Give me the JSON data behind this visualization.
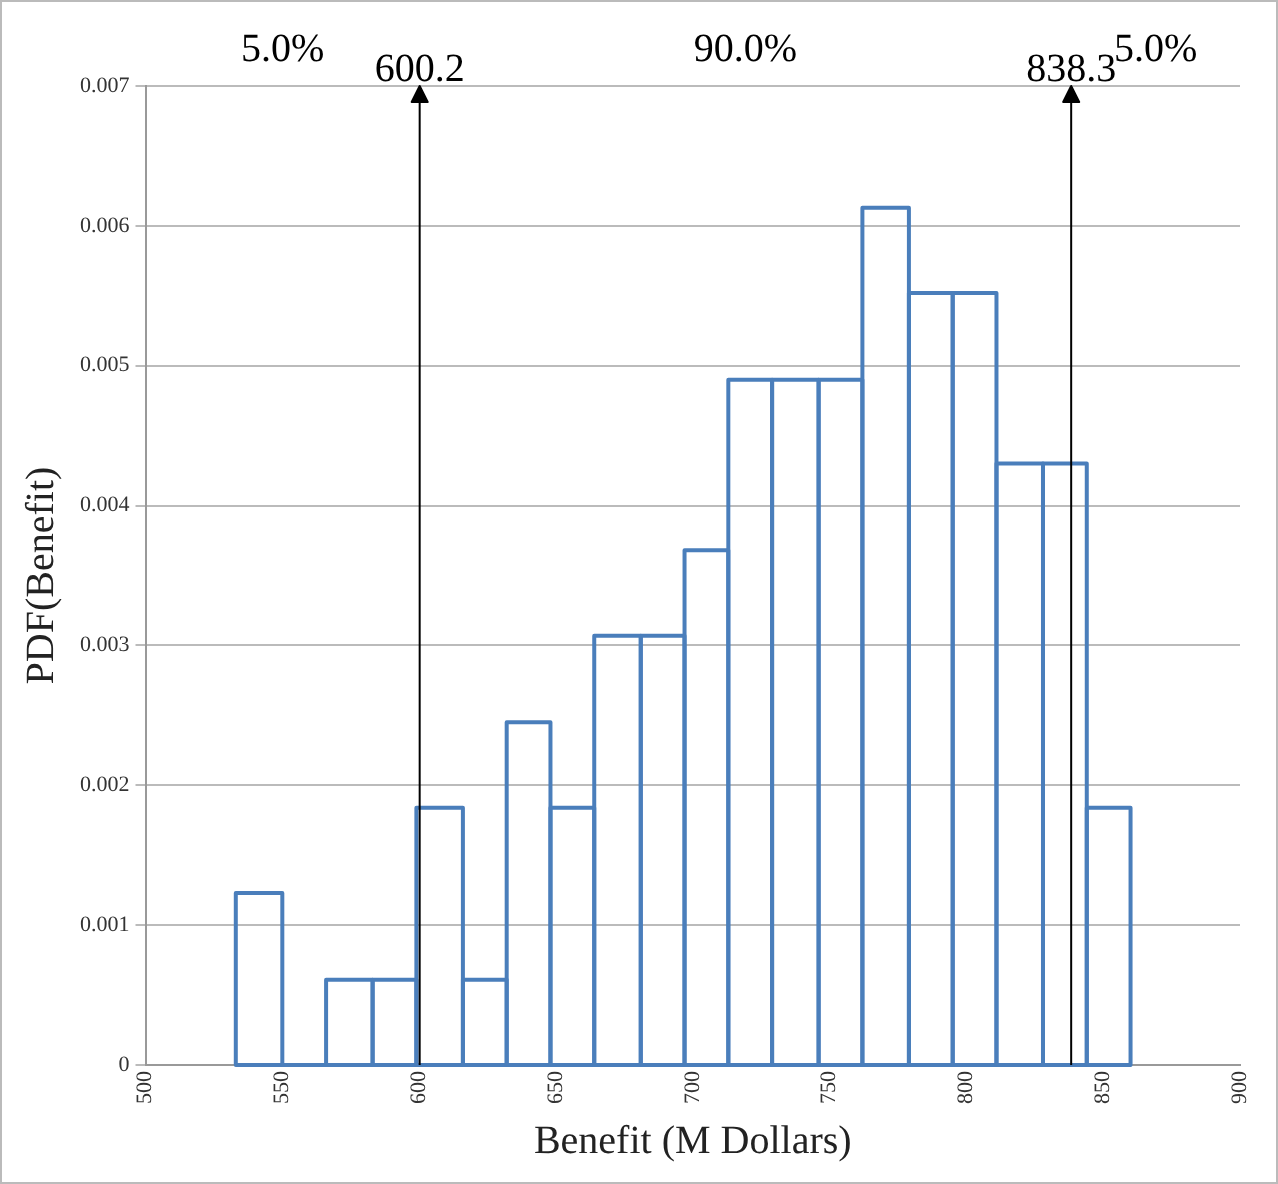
{
  "chart_data": {
    "type": "histogram",
    "xlabel": "Benefit (M Dollars)",
    "ylabel": "PDF(Benefit)",
    "bins": [
      533,
      550,
      566,
      583,
      599,
      616,
      632,
      648,
      664,
      681,
      697,
      713,
      729,
      746,
      762,
      779,
      795,
      811,
      828,
      844,
      860
    ],
    "values": [
      0.00123,
      0,
      0.00061,
      0.00061,
      0.00184,
      0.00061,
      0.00245,
      0.00184,
      0.00307,
      0.00307,
      0.00368,
      0.0049,
      0.0049,
      0.0049,
      0.00613,
      0.00552,
      0.00552,
      0.0043,
      0.0043,
      0.00184
    ],
    "color": "#4a7ebb",
    "xlim": [
      500,
      900
    ],
    "xticks": [
      500,
      550,
      600,
      650,
      700,
      750,
      800,
      850,
      900
    ],
    "ylim": [
      0,
      0.007
    ],
    "yticks": [
      0,
      0.001,
      0.002,
      0.003,
      0.004,
      0.005,
      0.006,
      0.007
    ],
    "grid": "y",
    "legend": false,
    "ref_lines": [
      {
        "axis": "x",
        "value": 600.2,
        "label": "600.2",
        "color": "#000000"
      },
      {
        "axis": "x",
        "value": 838.3,
        "label": "838.3",
        "color": "#000000"
      }
    ],
    "annotations": [
      "5.0%",
      "90.0%",
      "5.0%"
    ]
  }
}
